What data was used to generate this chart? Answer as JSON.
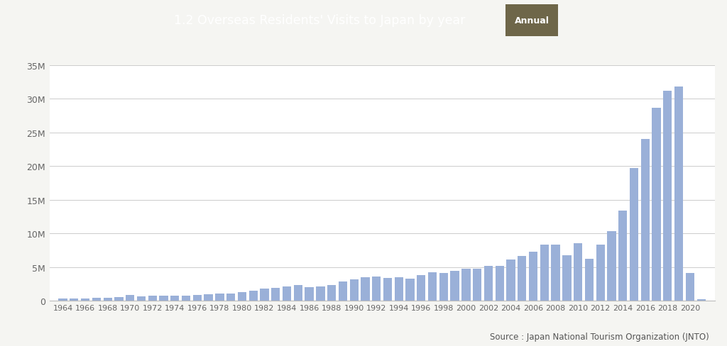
{
  "title": "1.2 Overseas Residents' Visits to Japan by year",
  "badge_text": "Annual",
  "source_text": "Source : Japan National Tourism Organization (JNTO)",
  "header_bg_color": "#a89880",
  "badge_bg_color": "#6e6649",
  "bar_color": "#9ab0d8",
  "background_color": "#f5f5f2",
  "chart_bg_color": "#ffffff",
  "years": [
    1964,
    1965,
    1966,
    1967,
    1968,
    1969,
    1970,
    1971,
    1972,
    1973,
    1974,
    1975,
    1976,
    1977,
    1978,
    1979,
    1980,
    1981,
    1982,
    1983,
    1984,
    1985,
    1986,
    1987,
    1988,
    1989,
    1990,
    1991,
    1992,
    1993,
    1994,
    1995,
    1996,
    1997,
    1998,
    1999,
    2000,
    2001,
    2002,
    2003,
    2004,
    2005,
    2006,
    2007,
    2008,
    2009,
    2010,
    2011,
    2012,
    2013,
    2014,
    2015,
    2016,
    2017,
    2018,
    2019,
    2020,
    2021
  ],
  "values": [
    352000,
    368000,
    406000,
    436000,
    489000,
    538000,
    854000,
    661000,
    790000,
    753000,
    789000,
    812000,
    916000,
    1029000,
    1055000,
    1096000,
    1317000,
    1562000,
    1801000,
    1967000,
    2165000,
    2327000,
    2063000,
    2133000,
    2360000,
    2835000,
    3236000,
    3532000,
    3582000,
    3410000,
    3468000,
    3345000,
    3837000,
    4218000,
    4106000,
    4438000,
    4757000,
    4772000,
    5239000,
    5212000,
    6138000,
    6728000,
    7334000,
    8347000,
    8351000,
    6790000,
    8611000,
    6219000,
    8368000,
    10364000,
    13413000,
    19737000,
    24040000,
    28691000,
    31192000,
    31882000,
    4118000,
    245000
  ],
  "ylim": [
    0,
    35000000
  ],
  "yticks": [
    0,
    5000000,
    10000000,
    15000000,
    20000000,
    25000000,
    30000000,
    35000000
  ],
  "ytick_labels": [
    "0",
    "5M",
    "10M",
    "15M",
    "20M",
    "25M",
    "30M",
    "35M"
  ]
}
